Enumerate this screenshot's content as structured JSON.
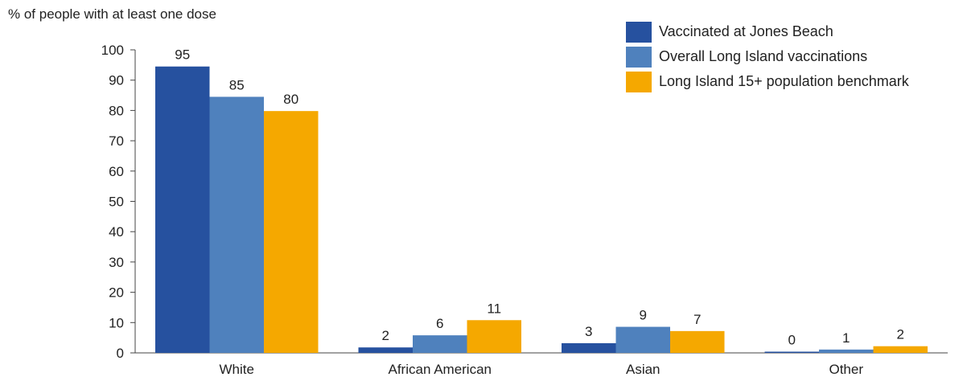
{
  "chart_data": {
    "type": "bar",
    "ylabel": "% of people with at least one dose",
    "xlabel": "",
    "categories": [
      "White",
      "African American",
      "Asian",
      "Other"
    ],
    "ylim": [
      0,
      100
    ],
    "yticks": [
      0,
      10,
      20,
      30,
      40,
      50,
      60,
      70,
      80,
      90,
      100
    ],
    "grid": false,
    "legend_position": "top-right",
    "series": [
      {
        "name": "Vaccinated at Jones Beach",
        "color": "#26519f",
        "values": [
          94.5,
          1.8,
          3.2,
          0.4
        ],
        "labels": [
          "95",
          "2",
          "3",
          "0"
        ]
      },
      {
        "name": "Overall Long Island vaccinations",
        "color": "#4f81bd",
        "values": [
          84.5,
          5.8,
          8.6,
          1.1
        ],
        "labels": [
          "85",
          "6",
          "9",
          "1"
        ]
      },
      {
        "name": "Long Island 15+ population benchmark",
        "color": "#f5a800",
        "values": [
          79.8,
          10.8,
          7.2,
          2.2
        ],
        "labels": [
          "80",
          "11",
          "7",
          "2"
        ]
      }
    ]
  }
}
